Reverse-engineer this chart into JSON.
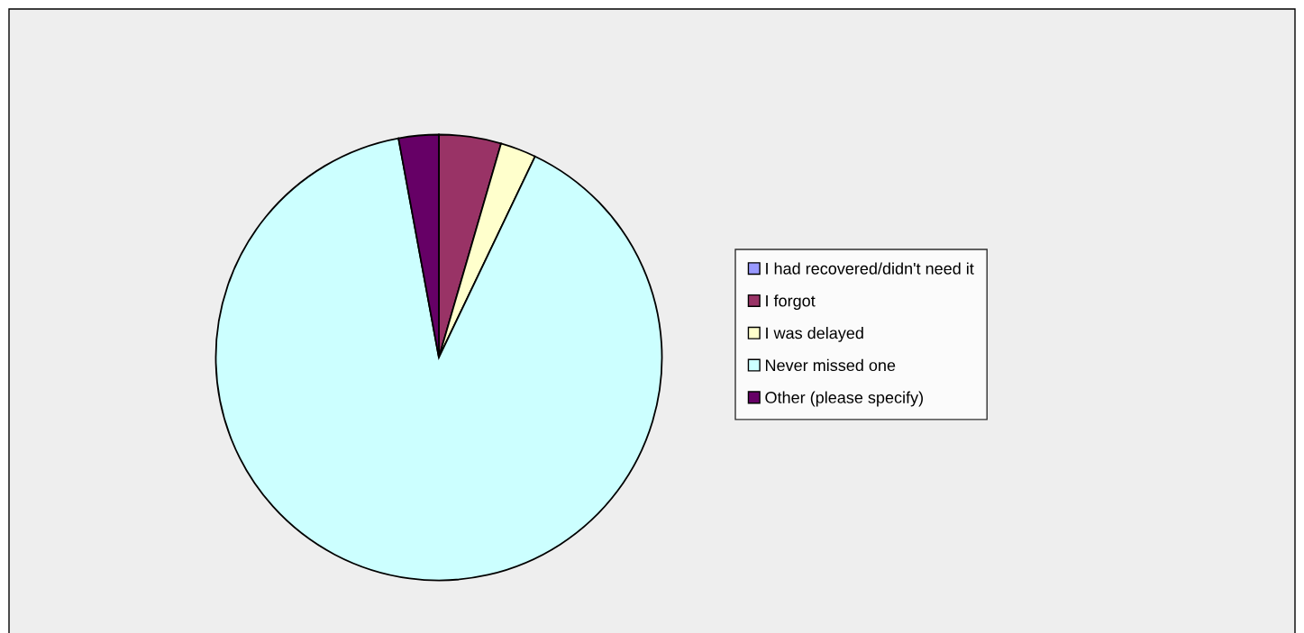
{
  "chart_data": {
    "type": "pie",
    "categories": [
      "I had recovered/didn't need it",
      "I forgot",
      "I was delayed",
      "Never missed one",
      "Other (please specify)"
    ],
    "values": [
      0,
      4.5,
      2.6,
      90.0,
      2.9
    ],
    "colors": [
      "#9999ff",
      "#993366",
      "#ffffcc",
      "#ccffff",
      "#660066"
    ],
    "legend": "right"
  }
}
